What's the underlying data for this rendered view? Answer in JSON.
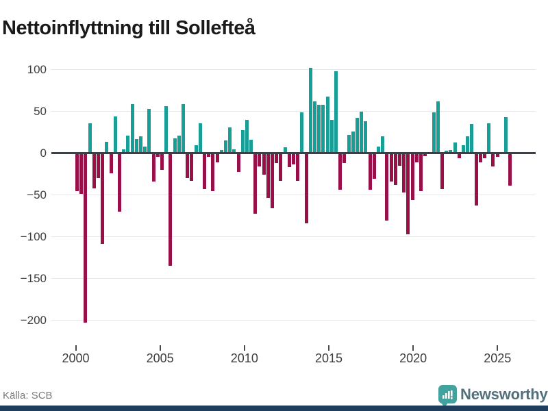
{
  "title": "Nettoinflyttning till Sollefteå",
  "footer": {
    "source": "Källa: SCB",
    "brand": "Newsworthy"
  },
  "colors": {
    "positive_bar": "#179e97",
    "negative_bar": "#990f47",
    "grid": "#e7e7e7",
    "zero_line": "#3a4046",
    "axis_text": "#3d3d3d",
    "title_text": "#1a1a1a",
    "source_text": "#7b7b7b",
    "brand_text": "#52707b",
    "brand_icon": "#42a39e",
    "footer_strip": "#1f3d5c",
    "background": "#ffffff"
  },
  "chart_data": {
    "type": "bar",
    "title": "Nettoinflyttning till Sollefteå",
    "frequency": "quarterly",
    "x_start": "2000-Q1",
    "x_end": "2025-Q3",
    "x_tick_labels": [
      "2000",
      "2005",
      "2010",
      "2015",
      "2020",
      "2025"
    ],
    "y_ticks": [
      100,
      50,
      0,
      -50,
      -100,
      -150,
      -200
    ],
    "y_tick_labels": [
      "100",
      "50",
      "0",
      "−50",
      "−100",
      "−150",
      "−200"
    ],
    "ylim": [
      -210,
      110
    ],
    "grid": "horizontal",
    "legend": "none",
    "values": [
      -45,
      -48,
      -202,
      35,
      -41,
      -29,
      -108,
      13,
      -23,
      43,
      -69,
      4,
      20,
      58,
      16,
      19,
      7,
      52,
      -33,
      -4,
      -19,
      55,
      -134,
      17,
      20,
      58,
      -29,
      -32,
      9,
      35,
      -42,
      -4,
      -45,
      -10,
      3,
      14,
      30,
      4,
      -22,
      27,
      39,
      15,
      -72,
      -15,
      -25,
      -53,
      -65,
      -11,
      -32,
      6,
      -16,
      -13,
      -32,
      48,
      -83,
      101,
      61,
      57,
      57,
      67,
      39,
      97,
      -43,
      -11,
      21,
      25,
      41,
      49,
      37,
      -43,
      -30,
      7,
      19,
      -80,
      -33,
      -37,
      -14,
      -46,
      -96,
      -55,
      -10,
      -45,
      -3,
      0,
      48,
      61,
      -42,
      2,
      3,
      12,
      -5,
      9,
      19,
      34,
      -62,
      -10,
      -5,
      35,
      -15,
      -4,
      0,
      42,
      -38
    ]
  }
}
